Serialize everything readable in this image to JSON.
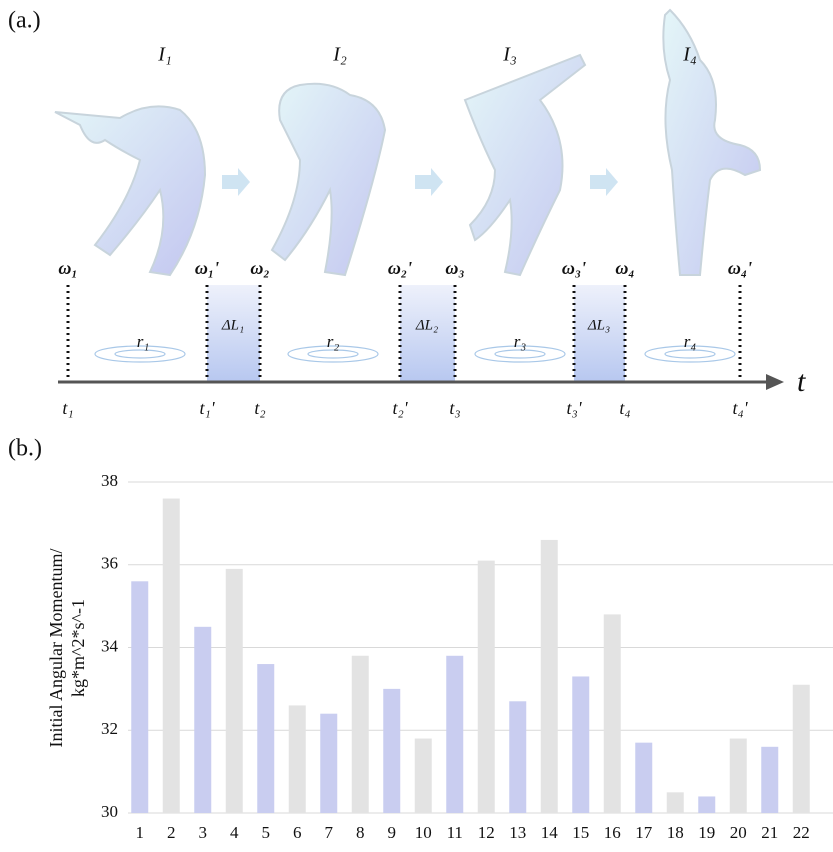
{
  "diagram": {
    "panel_label": "(a.)",
    "moments": [
      "I₁",
      "I₂",
      "I₃",
      "I₄"
    ],
    "omegas": [
      "ω₁",
      "ω₁'",
      "ω₂",
      "ω₂'",
      "ω₃",
      "ω₃'",
      "ω₄",
      "ω₄'"
    ],
    "times": [
      "t₁",
      "t₁'",
      "t₂",
      "t₂'",
      "t₃",
      "t₃'",
      "t₄",
      "t₄'"
    ],
    "delta_L": [
      "ΔL₁",
      "ΔL₂",
      "ΔL₃"
    ],
    "radii": [
      "r₁",
      "r₂",
      "r₃",
      "r₄"
    ],
    "axis_label": "t"
  },
  "chart_data": {
    "type": "bar",
    "panel_label": "(b.)",
    "y_label": [
      "Initial Angular Momentum/",
      "kg*m^2*s^-1"
    ],
    "categories": [
      "1",
      "2",
      "3",
      "4",
      "5",
      "6",
      "7",
      "8",
      "9",
      "10",
      "11",
      "12",
      "13",
      "14",
      "15",
      "16",
      "17",
      "18",
      "19",
      "20",
      "21",
      "22"
    ],
    "values": [
      35.6,
      37.6,
      34.5,
      35.9,
      33.6,
      32.6,
      32.4,
      33.8,
      33.0,
      31.8,
      33.8,
      36.1,
      32.7,
      36.6,
      33.3,
      34.8,
      31.7,
      30.5,
      30.4,
      31.8,
      31.6,
      33.1
    ],
    "colors": [
      "#c9cdf0",
      "#e3e3e3"
    ],
    "ylim": [
      30,
      38
    ],
    "yticks": [
      30,
      32,
      34,
      36,
      38
    ],
    "grid": true
  }
}
